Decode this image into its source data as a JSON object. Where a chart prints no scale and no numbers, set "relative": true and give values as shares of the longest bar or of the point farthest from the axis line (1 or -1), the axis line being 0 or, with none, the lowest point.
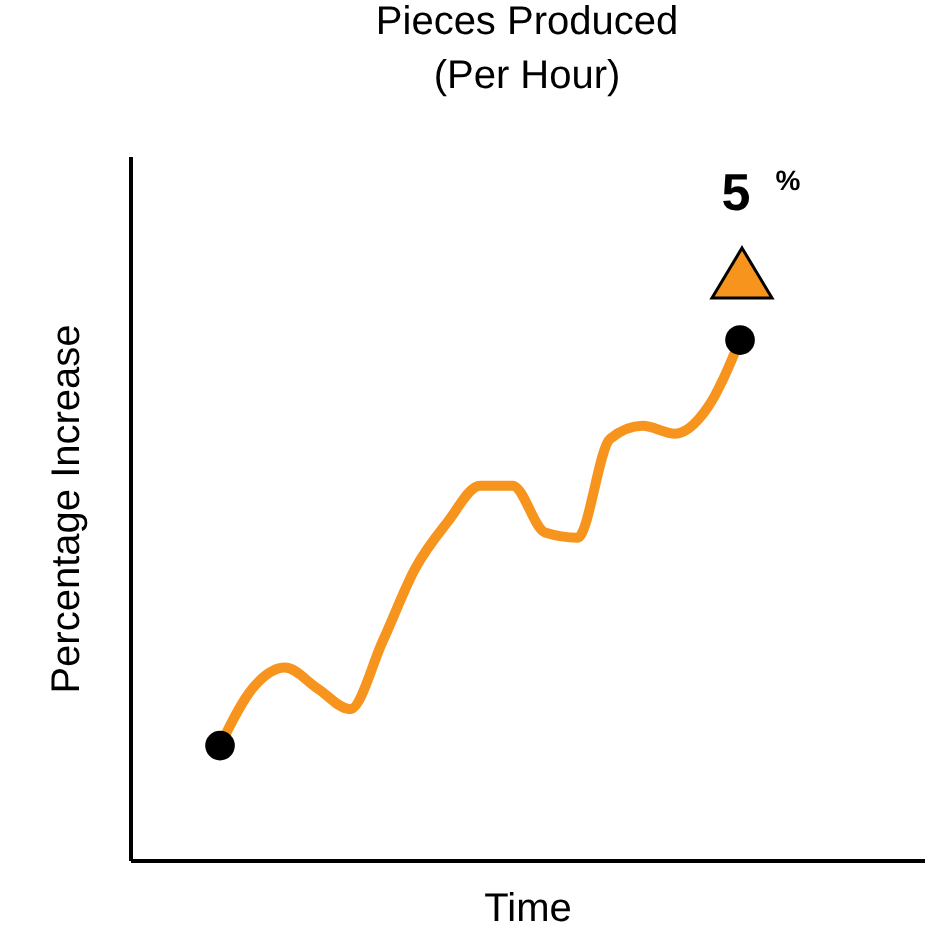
{
  "chart_data": {
    "type": "line",
    "title": "Pieces Produced\n(Per Hour)",
    "xlabel": "Time",
    "ylabel": "Percentage Increase",
    "relative": true,
    "categories": [
      null,
      null,
      null,
      null,
      null,
      null,
      null,
      null,
      null,
      null,
      null,
      null,
      null,
      null,
      null,
      null,
      null
    ],
    "series": [
      {
        "color": "#f7941d",
        "values": [
          0.22,
          0.33,
          0.37,
          0.33,
          0.29,
          0.42,
          0.56,
          0.65,
          0.72,
          0.72,
          0.63,
          0.62,
          0.81,
          0.835,
          0.82,
          0.87,
          1
        ]
      }
    ],
    "annotations": [
      {
        "text": "5$^{%}$",
        "y": 1
      }
    ]
  }
}
